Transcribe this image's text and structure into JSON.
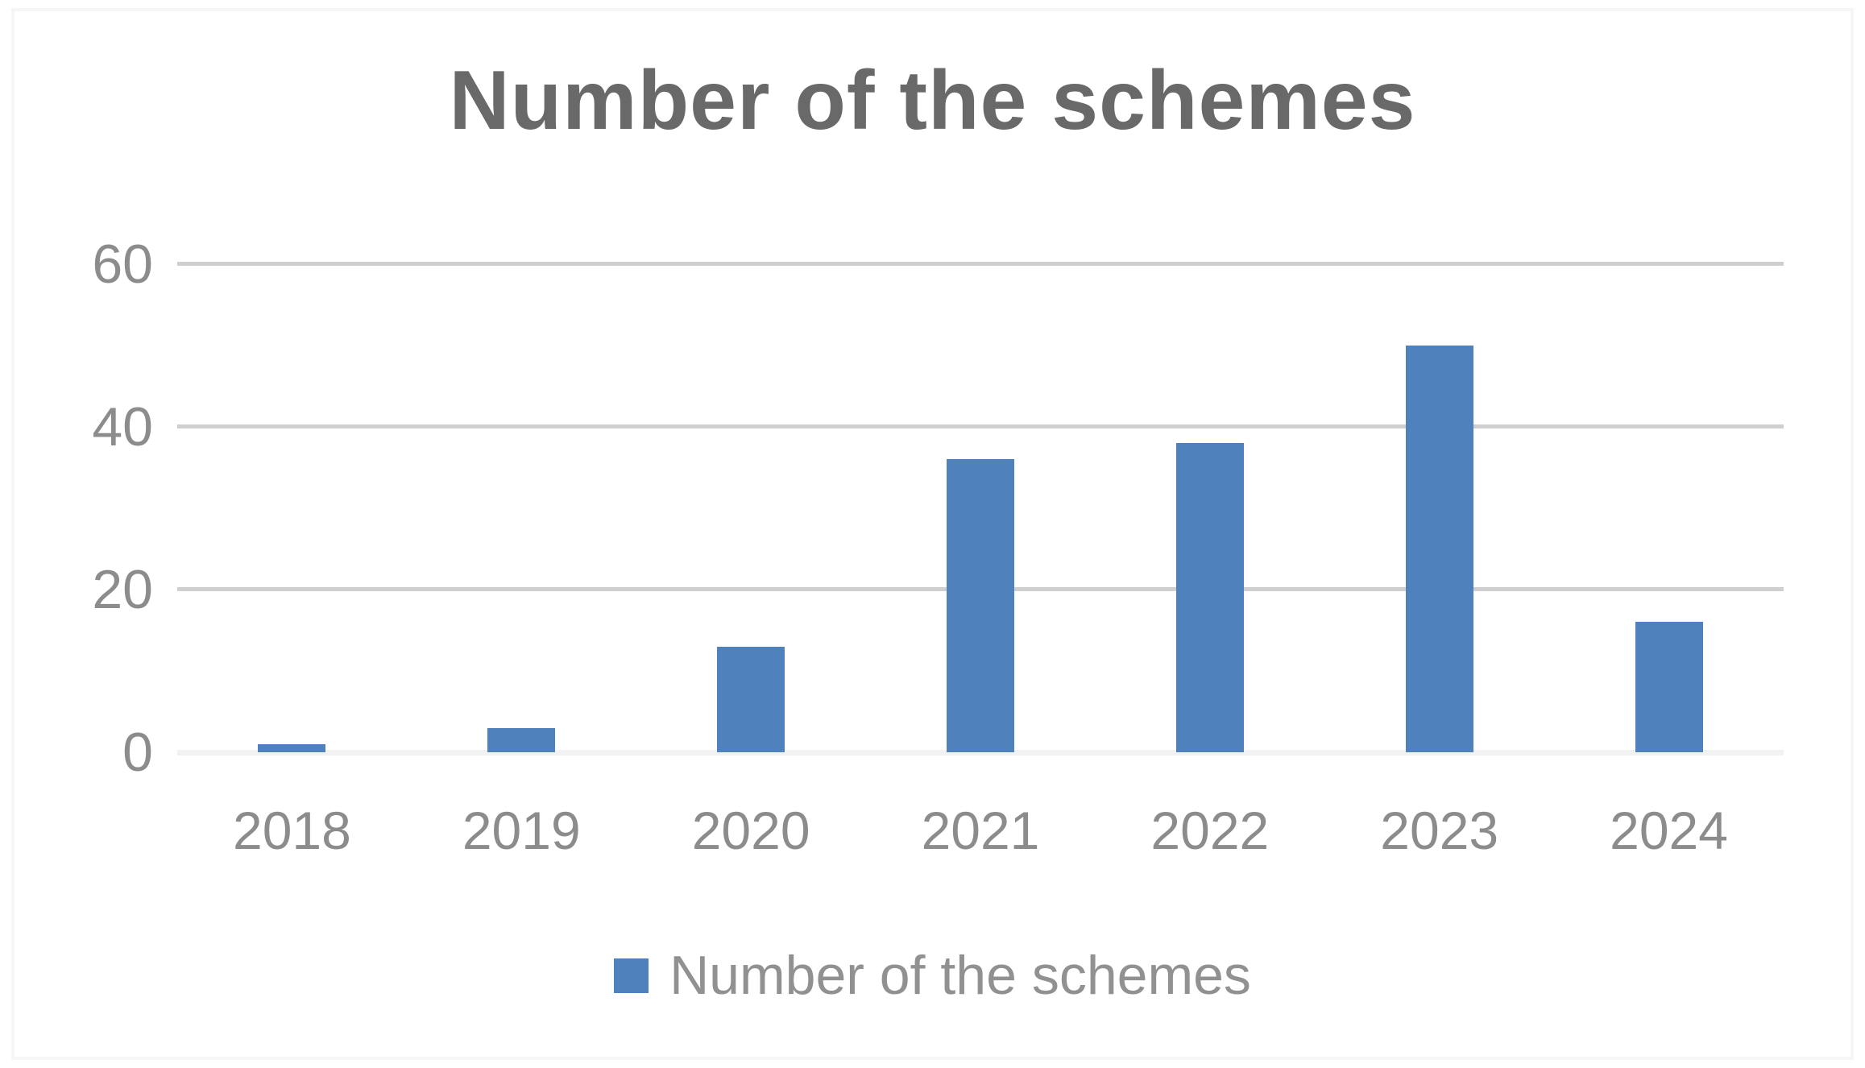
{
  "chart_data": {
    "type": "bar",
    "title": "Number of the schemes",
    "categories": [
      "2018",
      "2019",
      "2020",
      "2021",
      "2022",
      "2023",
      "2024"
    ],
    "values": [
      1,
      3,
      13,
      36,
      38,
      50,
      16
    ],
    "series": [
      {
        "name": "Number of the schemes",
        "values": [
          1,
          3,
          13,
          36,
          38,
          50,
          16
        ]
      }
    ],
    "legend_label": "Number of the schemes",
    "legend_position": "bottom",
    "xlabel": "",
    "ylabel": "",
    "yticks": [
      60,
      40,
      20,
      0
    ],
    "ylim": [
      0,
      60
    ],
    "grid": true,
    "bar_color": "#4F81BD",
    "gridline_color": "#cfcfcf",
    "baseline_color": "#f2f2f2",
    "title_color": "#696969",
    "axis_label_color": "#8c8c8c",
    "legend_text_color": "#919191"
  }
}
